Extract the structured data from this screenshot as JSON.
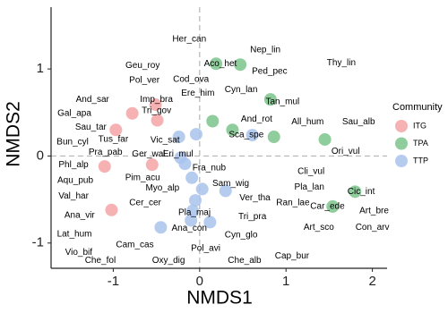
{
  "chart_data": {
    "type": "scatter",
    "x_label": "NMDS1",
    "y_label": "NMDS2",
    "xlim": [
      -1.72,
      2.17
    ],
    "ylim": [
      -1.29,
      1.71
    ],
    "xticks": [
      -1,
      0,
      1,
      2
    ],
    "yticks": [
      -1,
      0,
      1
    ],
    "grid": false,
    "reference_lines": {
      "x": 0,
      "y": 0
    },
    "legend_title": "Community",
    "legend_position": "right",
    "series": [
      {
        "name": "ITG",
        "color": "#f4a3a6",
        "x": [
          -0.78,
          -0.51,
          -0.49,
          -0.97,
          -1.1,
          -0.55,
          -1.02
        ],
        "y": [
          0.49,
          0.59,
          0.41,
          0.3,
          -0.12,
          -0.1,
          -0.62
        ]
      },
      {
        "name": "TPA",
        "color": "#7dc48b",
        "x": [
          0.19,
          0.47,
          0.82,
          0.15,
          0.38,
          0.86,
          1.45,
          1.8,
          1.54
        ],
        "y": [
          1.06,
          1.05,
          0.65,
          0.4,
          0.3,
          0.22,
          0.19,
          -0.41,
          -0.58
        ]
      },
      {
        "name": "TTP",
        "color": "#a8c3ec",
        "x": [
          -0.04,
          -0.24,
          -0.22,
          -0.17,
          0.61,
          -0.09,
          0.03,
          -0.05,
          -0.08,
          -0.1,
          -0.45,
          0.12,
          0.3
        ],
        "y": [
          0.25,
          0.22,
          -0.02,
          -0.09,
          0.24,
          -0.25,
          -0.38,
          -0.51,
          -0.63,
          -0.74,
          -0.82,
          -0.76,
          -0.4
        ]
      }
    ],
    "labels": [
      {
        "text": "Her_can",
        "x": -0.12,
        "y": 1.34
      },
      {
        "text": "Nep_lin",
        "x": 0.76,
        "y": 1.22
      },
      {
        "text": "Thy_lin",
        "x": 1.64,
        "y": 1.07
      },
      {
        "text": "Geu_roy",
        "x": -0.66,
        "y": 1.04
      },
      {
        "text": "Aco_het",
        "x": 0.24,
        "y": 1.06
      },
      {
        "text": "Ped_pec",
        "x": 0.81,
        "y": 0.97
      },
      {
        "text": "Pol_ver",
        "x": -0.64,
        "y": 0.87
      },
      {
        "text": "Cod_ova",
        "x": -0.1,
        "y": 0.88
      },
      {
        "text": "Cyn_lan",
        "x": 0.48,
        "y": 0.76
      },
      {
        "text": "Ere_him",
        "x": -0.02,
        "y": 0.72
      },
      {
        "text": "Tan_mul",
        "x": 0.96,
        "y": 0.62
      },
      {
        "text": "And_sar",
        "x": -1.24,
        "y": 0.65
      },
      {
        "text": "Imp_bra",
        "x": -0.5,
        "y": 0.65
      },
      {
        "text": "Tri_gov",
        "x": -0.5,
        "y": 0.52
      },
      {
        "text": "Gal_apa",
        "x": -1.45,
        "y": 0.49
      },
      {
        "text": "And_rot",
        "x": 0.66,
        "y": 0.42
      },
      {
        "text": "All_hum",
        "x": 1.25,
        "y": 0.39
      },
      {
        "text": "Sau_alb",
        "x": 1.84,
        "y": 0.39
      },
      {
        "text": "Sau_tar",
        "x": -1.26,
        "y": 0.33
      },
      {
        "text": "Sca_spe",
        "x": 0.54,
        "y": 0.24
      },
      {
        "text": "Bun_cyl",
        "x": -1.47,
        "y": 0.16
      },
      {
        "text": "Tus_far",
        "x": -1.0,
        "y": 0.19
      },
      {
        "text": "Vic_sat",
        "x": -0.4,
        "y": 0.18
      },
      {
        "text": "Ori_vul",
        "x": 1.69,
        "y": 0.05
      },
      {
        "text": "Pra_pab",
        "x": -1.09,
        "y": 0.04
      },
      {
        "text": "Ger_wal",
        "x": -0.59,
        "y": 0.02
      },
      {
        "text": "Eri_mul",
        "x": -0.25,
        "y": 0.02
      },
      {
        "text": "Phl_alp",
        "x": -1.46,
        "y": -0.1
      },
      {
        "text": "Fra_nub",
        "x": 0.11,
        "y": -0.14
      },
      {
        "text": "Cli_vul",
        "x": 1.29,
        "y": -0.18
      },
      {
        "text": "Pim_acu",
        "x": -0.66,
        "y": -0.25
      },
      {
        "text": "Aqu_pub",
        "x": -1.44,
        "y": -0.28
      },
      {
        "text": "Sam_wig",
        "x": 0.36,
        "y": -0.32
      },
      {
        "text": "Pla_lan",
        "x": 1.27,
        "y": -0.36
      },
      {
        "text": "Myo_alp",
        "x": -0.43,
        "y": -0.37
      },
      {
        "text": "Cic_int",
        "x": 1.87,
        "y": -0.41
      },
      {
        "text": "Val_har",
        "x": -1.46,
        "y": -0.46
      },
      {
        "text": "Ver_tha",
        "x": 0.64,
        "y": -0.48
      },
      {
        "text": "Ran_lae",
        "x": 1.08,
        "y": -0.54
      },
      {
        "text": "Car_ede",
        "x": 1.48,
        "y": -0.58
      },
      {
        "text": "Cer_cer",
        "x": -0.63,
        "y": -0.54
      },
      {
        "text": "Art_bre",
        "x": 2.02,
        "y": -0.63
      },
      {
        "text": "Pla_maj",
        "x": -0.06,
        "y": -0.65
      },
      {
        "text": "Ana_vir",
        "x": -1.39,
        "y": -0.68
      },
      {
        "text": "Tri_pra",
        "x": 0.61,
        "y": -0.7
      },
      {
        "text": "Art_sco",
        "x": 1.38,
        "y": -0.82
      },
      {
        "text": "Con_arv",
        "x": 2.0,
        "y": -0.82
      },
      {
        "text": "Ana_con",
        "x": -0.12,
        "y": -0.83
      },
      {
        "text": "Lat_hum",
        "x": -1.45,
        "y": -0.9
      },
      {
        "text": "Cyn_glo",
        "x": 0.48,
        "y": -0.91
      },
      {
        "text": "Cam_cas",
        "x": -0.75,
        "y": -1.02
      },
      {
        "text": "Vio_bif",
        "x": -1.4,
        "y": -1.11
      },
      {
        "text": "Pol_avi",
        "x": 0.07,
        "y": -1.06
      },
      {
        "text": "Cap_bur",
        "x": 1.07,
        "y": -1.15
      },
      {
        "text": "Che_fol",
        "x": -1.15,
        "y": -1.2
      },
      {
        "text": "Oxy_dig",
        "x": -0.36,
        "y": -1.2
      },
      {
        "text": "Che_alb",
        "x": 0.52,
        "y": -1.2
      }
    ]
  }
}
